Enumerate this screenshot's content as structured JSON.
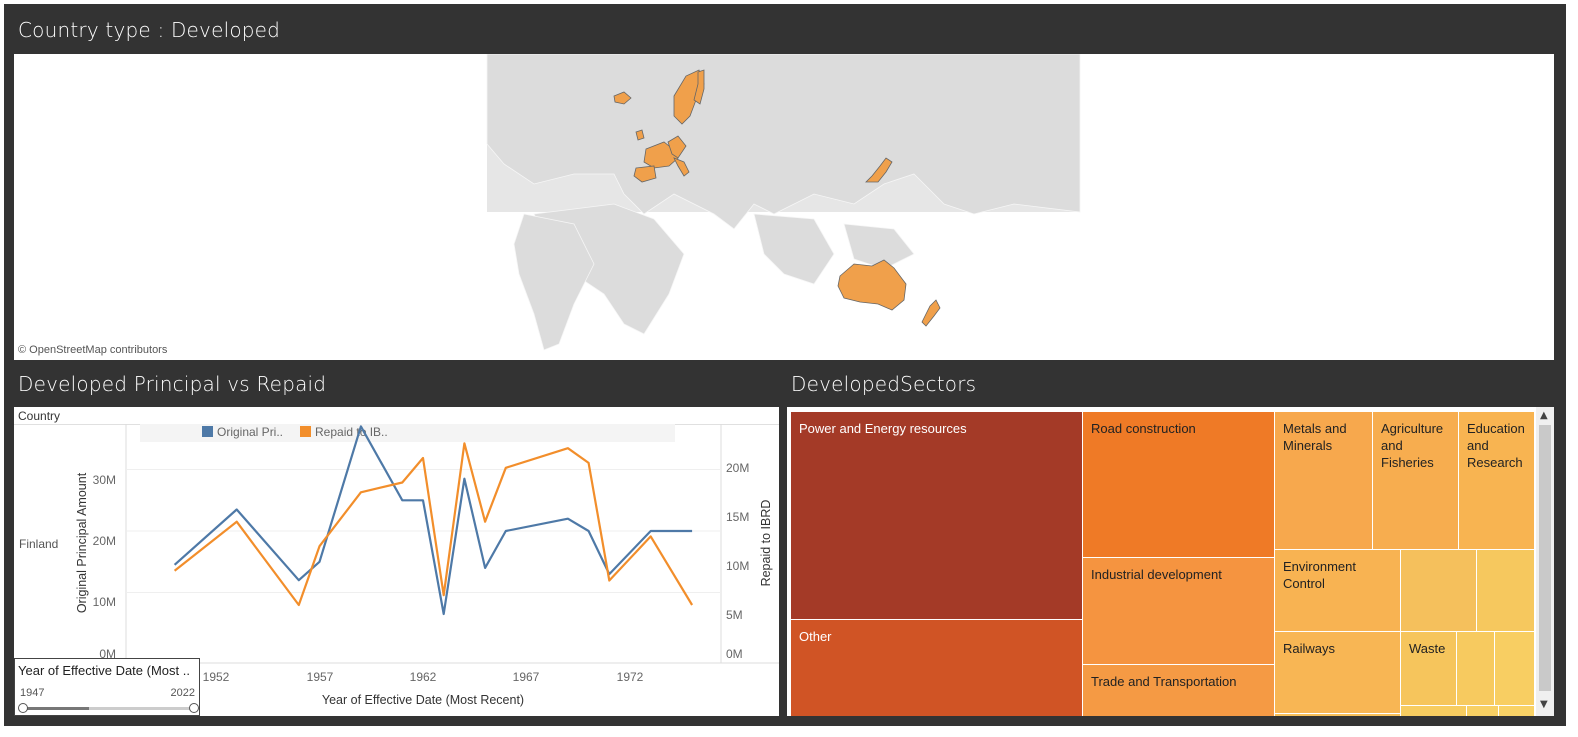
{
  "map": {
    "title": "Country type : Developed",
    "attribution": "© OpenStreetMap contributors"
  },
  "line_chart": {
    "title": "Developed Principal vs Repaid",
    "header": "Country",
    "row_label": "Finland",
    "legend": [
      "Original Pri..",
      "Repaid to IB.."
    ],
    "y_left_label": "Original Principal Amount",
    "y_right_label": "Repaid to IBRD",
    "x_label": "Year of Effective Date (Most Recent)",
    "y_left_ticks": [
      "0M",
      "10M",
      "20M",
      "30M"
    ],
    "y_right_ticks": [
      "0M",
      "5M",
      "10M",
      "15M",
      "20M"
    ],
    "x_ticks": [
      "1952",
      "1957",
      "1962",
      "1967",
      "1972"
    ],
    "colors": {
      "original": "#4e79a7",
      "repaid": "#f28e2b"
    }
  },
  "filter": {
    "title": "Year of Effective Date (Most ..",
    "min": "1947",
    "max": "2022"
  },
  "treemap": {
    "title": "DevelopedSectors",
    "tiles": [
      "Power and Energy resources",
      "Other",
      "Road construction",
      "Industrial development",
      "Trade and Transportation",
      "Metals and Minerals",
      "Agriculture and Fisheries",
      "Education and Research",
      "Environment Control",
      "Railways",
      "Waste"
    ]
  },
  "chart_data": {
    "type": "line",
    "x_label": "Year of Effective Date (Most Recent)",
    "x_range": [
      1950,
      1977
    ],
    "series": [
      {
        "name": "Original Pri..",
        "axis": "left",
        "ylim": [
          0,
          37
        ],
        "x": [
          1950,
          1953,
          1956,
          1957,
          1959,
          1961,
          1962,
          1963,
          1964,
          1965,
          1966,
          1969,
          1970,
          1971,
          1973,
          1975
        ],
        "y": [
          14.5,
          23.5,
          12,
          15,
          37,
          25,
          25,
          6.5,
          28.5,
          14,
          20,
          22,
          20,
          13,
          20,
          20
        ]
      },
      {
        "name": "Repaid to IB..",
        "axis": "right",
        "ylim": [
          0,
          23.5
        ],
        "x": [
          1950,
          1953,
          1956,
          1957,
          1959,
          1961,
          1962,
          1963,
          1964,
          1965,
          1966,
          1969,
          1970,
          1971,
          1973,
          1975
        ],
        "y": [
          8.5,
          13.5,
          5,
          11,
          16.5,
          17.5,
          20,
          6,
          21.5,
          13.5,
          19,
          21,
          19.5,
          7.5,
          12,
          5
        ]
      }
    ]
  }
}
